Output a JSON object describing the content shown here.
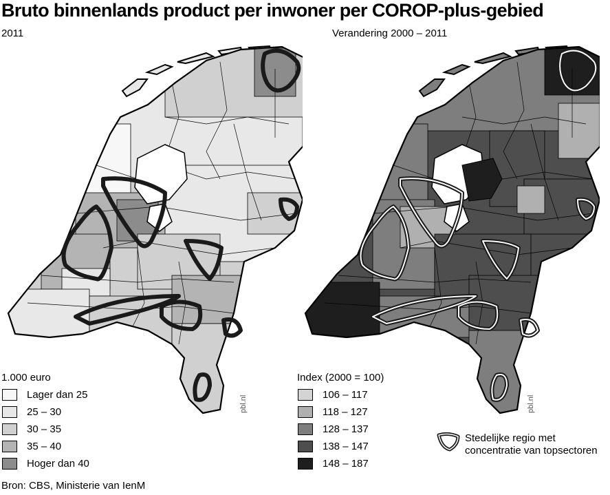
{
  "title": "Bruto binnenlands product per inwoner per COROP-plus-gebied",
  "left_map": {
    "subtitle": "2011",
    "legend_title": "1.000 euro",
    "legend": [
      {
        "label": "Lager dan 25",
        "color": "#f7f7f7"
      },
      {
        "label": "25 – 30",
        "color": "#e8e8e8"
      },
      {
        "label": "30 – 35",
        "color": "#d0d0d0"
      },
      {
        "label": "35 – 40",
        "color": "#b4b4b4"
      },
      {
        "label": "Hoger dan 40",
        "color": "#8c8c8c"
      }
    ]
  },
  "right_map": {
    "subtitle": "Verandering 2000 – 2011",
    "legend_title": "Index (2000 = 100)",
    "legend": [
      {
        "label": "106 – 117",
        "color": "#d4d4d4"
      },
      {
        "label": "118 – 127",
        "color": "#b0b0b0"
      },
      {
        "label": "128 – 137",
        "color": "#7e7e7e"
      },
      {
        "label": "138 – 147",
        "color": "#4e4e4e"
      },
      {
        "label": "148 – 187",
        "color": "#1e1e1e"
      }
    ]
  },
  "stedelijk_label": "Stedelijke regio met concentratie van topsectoren",
  "credit": "pbl.nl",
  "source": "Bron: CBS, Ministerie van IenM"
}
